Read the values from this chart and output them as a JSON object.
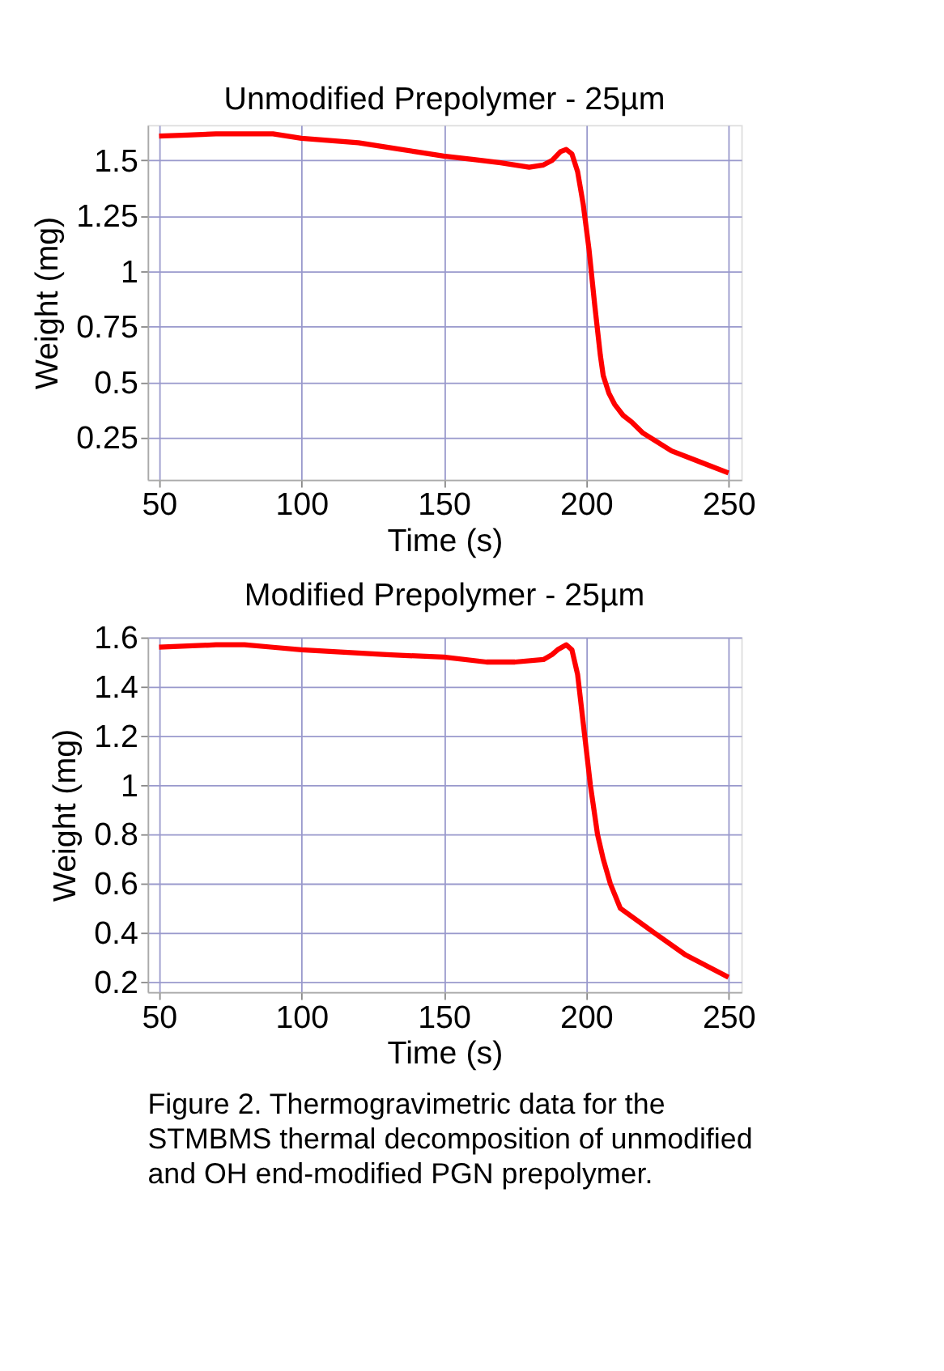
{
  "chart_data": [
    {
      "type": "line",
      "title": "Unmodified Prepolymer - 25µm",
      "xlabel": "Time (s)",
      "ylabel": "Weight (mg)",
      "grid": true,
      "line_style": "solid",
      "marker": "none",
      "xlim": [
        46,
        254.5
      ],
      "ylim": [
        0.06,
        1.66
      ],
      "xticks": [
        50,
        100,
        150,
        200,
        250
      ],
      "yticks": [
        0.25,
        0.5,
        0.75,
        1,
        1.25,
        1.5
      ],
      "series": [
        {
          "color": "#ff0000",
          "x": [
            50,
            60,
            70,
            80,
            90,
            100,
            110,
            120,
            130,
            140,
            150,
            160,
            170,
            180,
            185,
            188,
            191,
            193,
            195,
            197,
            199,
            201,
            203,
            205,
            206,
            208,
            210,
            213,
            216,
            220,
            225,
            230,
            240,
            250
          ],
          "values": [
            1.61,
            1.615,
            1.62,
            1.62,
            1.62,
            1.6,
            1.59,
            1.58,
            1.56,
            1.54,
            1.52,
            1.505,
            1.49,
            1.47,
            1.48,
            1.5,
            1.54,
            1.55,
            1.53,
            1.45,
            1.3,
            1.1,
            0.85,
            0.62,
            0.53,
            0.45,
            0.4,
            0.35,
            0.32,
            0.27,
            0.23,
            0.19,
            0.14,
            0.09
          ]
        }
      ]
    },
    {
      "type": "line",
      "title": "Modified Prepolymer - 25µm",
      "xlabel": "Time (s)",
      "ylabel": "Weight (mg)",
      "grid": true,
      "line_style": "solid",
      "marker": "none",
      "xlim": [
        46,
        254.5
      ],
      "ylim": [
        0.16,
        1.6
      ],
      "xticks": [
        50,
        100,
        150,
        200,
        250
      ],
      "yticks": [
        0.2,
        0.4,
        0.6,
        0.8,
        1,
        1.2,
        1.4,
        1.6
      ],
      "annotations": [
        "Figure 2.  Thermogravimetric data for the STMBMS thermal decomposition of unmodified and OH end-modified PGN prepolymer."
      ],
      "series": [
        {
          "color": "#ff0000",
          "x": [
            50,
            60,
            70,
            80,
            90,
            100,
            115,
            130,
            150,
            165,
            175,
            185,
            188,
            190,
            193,
            195,
            197,
            199,
            201.5,
            204,
            206,
            208.5,
            212,
            218,
            224,
            235,
            250
          ],
          "values": [
            1.56,
            1.565,
            1.57,
            1.57,
            1.56,
            1.55,
            1.54,
            1.53,
            1.52,
            1.5,
            1.5,
            1.51,
            1.53,
            1.55,
            1.57,
            1.55,
            1.45,
            1.25,
            1.0,
            0.8,
            0.7,
            0.6,
            0.5,
            0.45,
            0.4,
            0.31,
            0.22
          ]
        }
      ]
    }
  ]
}
